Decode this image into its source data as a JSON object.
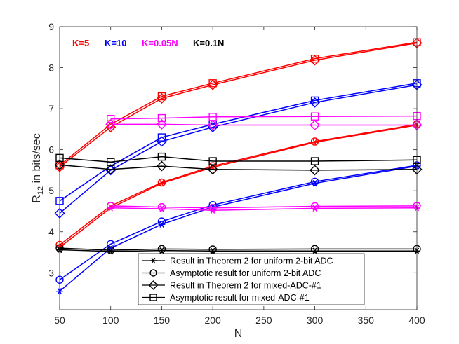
{
  "chart_data": {
    "type": "line",
    "title": "",
    "xlabel": "N",
    "ylabel": "R",
    "ylabel_sub": "12",
    "ylabel_suffix": " in bits/sec",
    "xlim": [
      50,
      400
    ],
    "ylim": [
      2.1,
      9
    ],
    "xticks": [
      50,
      100,
      150,
      200,
      250,
      300,
      350,
      400
    ],
    "yticks": [
      3,
      4,
      5,
      6,
      7,
      8,
      9
    ],
    "x": [
      50,
      100,
      150,
      200,
      300,
      400
    ],
    "annotations": [
      {
        "text": "K=5",
        "color": "#ff0000"
      },
      {
        "text": "K=10",
        "color": "#0000ff"
      },
      {
        "text": "K=0.05N",
        "color": "#ff00ff"
      },
      {
        "text": "K=0.1N",
        "color": "#000000"
      }
    ],
    "legend": {
      "location": "bottom-center",
      "entries": [
        {
          "label": "Result in Theorem 2 for uniform 2-bit ADC",
          "marker": "asterisk"
        },
        {
          "label": "Asymptotic result for uniform 2-bit ADC",
          "marker": "circle"
        },
        {
          "label": "Result in Theorem 2 for mixed-ADC-#1",
          "marker": "diamond"
        },
        {
          "label": "Asymptotic result for mixed-ADC-#1",
          "marker": "square"
        }
      ]
    },
    "series": [
      {
        "name": "K=5 mixed Theorem 2",
        "color": "#ff0000",
        "marker": "diamond",
        "values": [
          5.58,
          6.55,
          7.25,
          7.58,
          8.18,
          8.6
        ]
      },
      {
        "name": "K=5 mixed asymptotic",
        "color": "#ff0000",
        "marker": "square",
        "values": [
          5.62,
          6.62,
          7.3,
          7.62,
          8.22,
          8.62
        ]
      },
      {
        "name": "K=5 uniform Theorem 2",
        "color": "#ff0000",
        "marker": "asterisk",
        "values": [
          3.62,
          4.58,
          5.18,
          5.57,
          6.18,
          6.6
        ]
      },
      {
        "name": "K=5 uniform asymptotic",
        "color": "#ff0000",
        "marker": "circle",
        "values": [
          3.68,
          4.63,
          5.2,
          5.6,
          6.2,
          6.62
        ]
      },
      {
        "name": "K=10 mixed Theorem 2",
        "color": "#0000ff",
        "marker": "diamond",
        "values": [
          4.45,
          5.5,
          6.2,
          6.55,
          7.15,
          7.58
        ]
      },
      {
        "name": "K=10 mixed asymptotic",
        "color": "#0000ff",
        "marker": "square",
        "values": [
          4.75,
          5.6,
          6.3,
          6.62,
          7.2,
          7.62
        ]
      },
      {
        "name": "K=10 uniform Theorem 2",
        "color": "#0000ff",
        "marker": "asterisk",
        "values": [
          2.55,
          3.6,
          4.18,
          4.6,
          5.18,
          5.6
        ]
      },
      {
        "name": "K=10 uniform asymptotic",
        "color": "#0000ff",
        "marker": "circle",
        "values": [
          2.83,
          3.7,
          4.25,
          4.65,
          5.22,
          5.62
        ]
      },
      {
        "name": "K=0.05N mixed Theorem 2",
        "color": "#ff00ff",
        "marker": "diamond",
        "values": [
          null,
          6.62,
          6.62,
          6.6,
          6.6,
          6.6
        ]
      },
      {
        "name": "K=0.05N mixed asymptotic",
        "color": "#ff00ff",
        "marker": "square",
        "values": [
          null,
          6.75,
          6.77,
          6.8,
          6.81,
          6.82
        ]
      },
      {
        "name": "K=0.05N uniform Theorem 2",
        "color": "#ff00ff",
        "marker": "asterisk",
        "values": [
          null,
          4.58,
          4.56,
          4.52,
          4.57,
          4.58
        ]
      },
      {
        "name": "K=0.05N uniform asymptotic",
        "color": "#ff00ff",
        "marker": "circle",
        "values": [
          null,
          4.63,
          4.6,
          4.58,
          4.62,
          4.63
        ]
      },
      {
        "name": "K=0.1N mixed Theorem 2",
        "color": "#000000",
        "marker": "diamond",
        "values": [
          5.63,
          5.52,
          5.6,
          5.52,
          5.5,
          5.52
        ]
      },
      {
        "name": "K=0.1N mixed asymptotic",
        "color": "#000000",
        "marker": "square",
        "values": [
          5.8,
          5.7,
          5.83,
          5.72,
          5.72,
          5.75
        ]
      },
      {
        "name": "K=0.1N uniform Theorem 2",
        "color": "#000000",
        "marker": "asterisk",
        "values": [
          3.56,
          3.52,
          3.54,
          3.53,
          3.53,
          3.53
        ]
      },
      {
        "name": "K=0.1N uniform asymptotic",
        "color": "#000000",
        "marker": "circle",
        "values": [
          3.6,
          3.55,
          3.58,
          3.57,
          3.58,
          3.58
        ]
      }
    ]
  }
}
